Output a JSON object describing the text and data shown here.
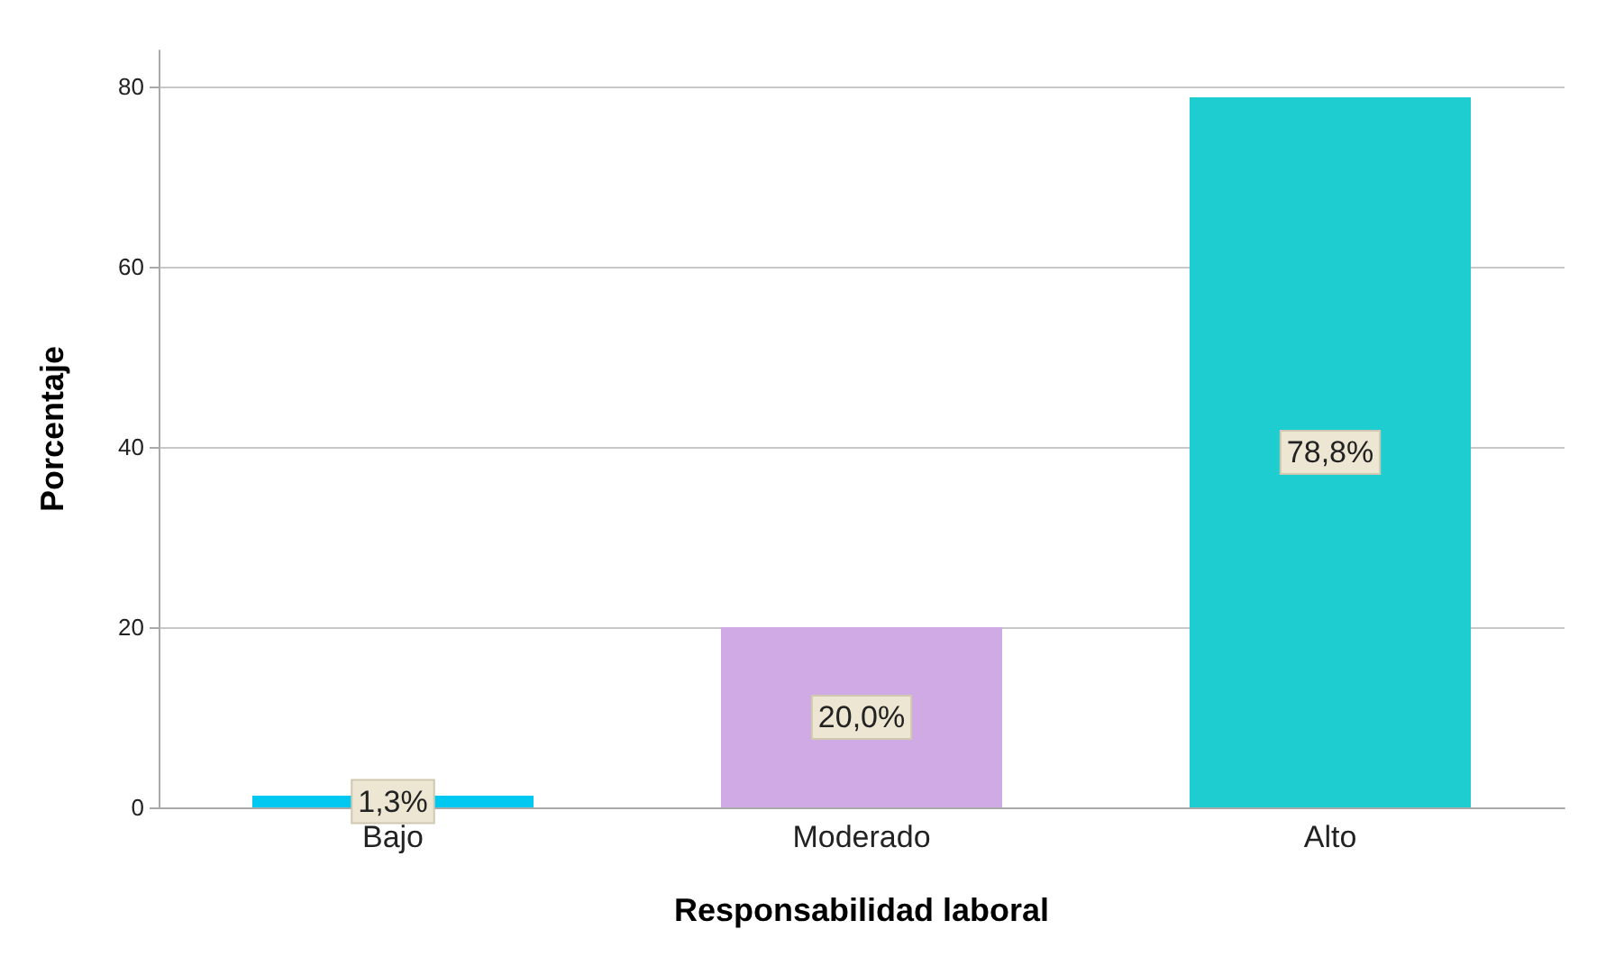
{
  "chart_data": {
    "type": "bar",
    "xlabel": "Responsabilidad laboral",
    "ylabel": "Porcentaje",
    "categories": [
      "Bajo",
      "Moderado",
      "Alto"
    ],
    "values": [
      1.3,
      20.0,
      78.8
    ],
    "colors": [
      "#00c8f0",
      "#d0aae4",
      "#1ecdcf"
    ],
    "value_labels": [
      "1,3%",
      "20,0%",
      "78,8%"
    ],
    "ylim": [
      0,
      84
    ],
    "yticks": [
      0,
      20,
      40,
      60,
      80
    ],
    "grid": "y"
  }
}
